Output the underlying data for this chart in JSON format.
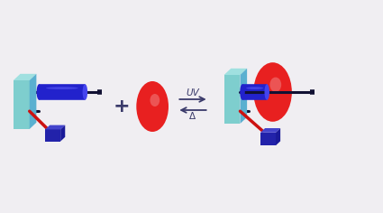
{
  "bg_color": "#f0eef2",
  "arrow_color": "#3a3a6a",
  "plus_color": "#3a3a6a",
  "uv_label": "UV",
  "delta_label": "Δ",
  "wall_colors": [
    "#7ecece",
    "#5ab0d0"
  ],
  "axle_color": "#1a1aaa",
  "ring_color_main": "#e82020",
  "ring_color_highlight": "#f08080",
  "stopper_color": "#1a1aaa",
  "box_color": "#1a1aaa",
  "title": ""
}
